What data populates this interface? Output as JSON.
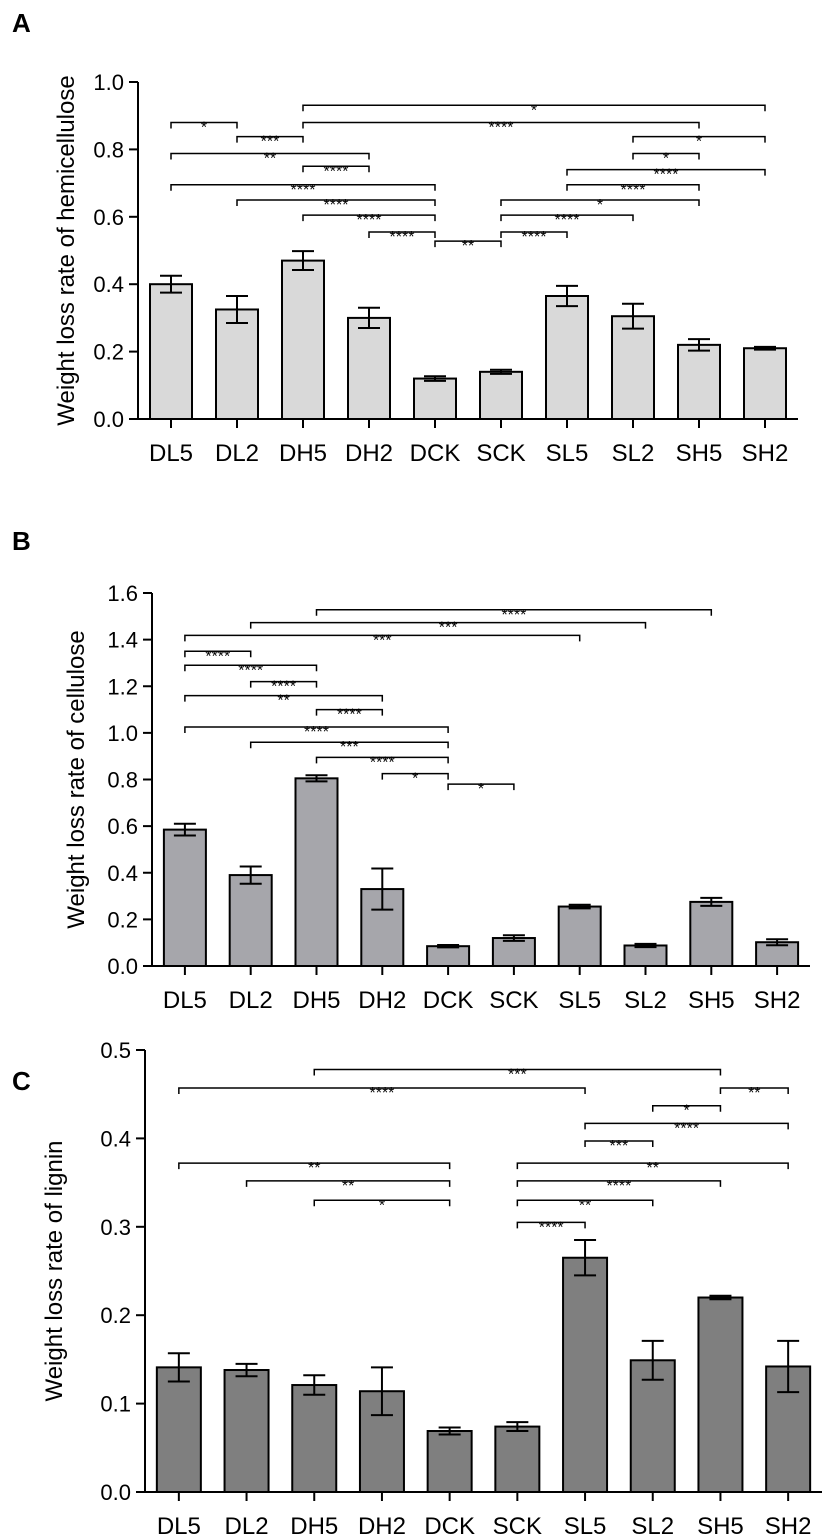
{
  "chart_data": [
    {
      "panel": "A",
      "type": "bar",
      "ylabel": "Weight loss rate of hemicellulose",
      "xlabel": "",
      "ylim": [
        0,
        1.0
      ],
      "yticks": [
        "0.0",
        "0.2",
        "0.4",
        "0.6",
        "0.8",
        "1.0"
      ],
      "categories": [
        "DL5",
        "DL2",
        "DH5",
        "DH2",
        "DCK",
        "SCK",
        "SL5",
        "SL2",
        "SH5",
        "SH2"
      ],
      "values": [
        0.4,
        0.325,
        0.47,
        0.3,
        0.12,
        0.14,
        0.365,
        0.305,
        0.22,
        0.21
      ],
      "errors": [
        0.025,
        0.04,
        0.028,
        0.03,
        0.007,
        0.006,
        0.03,
        0.037,
        0.017,
        0.004
      ],
      "bar_color": "#d9d9d9",
      "significance": [
        {
          "from": 2,
          "to": 9,
          "label": "*",
          "level": 0.931
        },
        {
          "from": 0,
          "to": 1,
          "label": "*",
          "level": 0.88
        },
        {
          "from": 2,
          "to": 8,
          "label": "****",
          "level": 0.88
        },
        {
          "from": 1,
          "to": 2,
          "label": "***",
          "level": 0.838
        },
        {
          "from": 7,
          "to": 9,
          "label": "*",
          "level": 0.838
        },
        {
          "from": 0,
          "to": 3,
          "label": "**",
          "level": 0.788
        },
        {
          "from": 7,
          "to": 8,
          "label": "*",
          "level": 0.788
        },
        {
          "from": 2,
          "to": 3,
          "label": "****",
          "level": 0.75
        },
        {
          "from": 6,
          "to": 9,
          "label": "****",
          "level": 0.74
        },
        {
          "from": 0,
          "to": 4,
          "label": "****",
          "level": 0.695
        },
        {
          "from": 6,
          "to": 8,
          "label": "****",
          "level": 0.695
        },
        {
          "from": 1,
          "to": 4,
          "label": "****",
          "level": 0.65
        },
        {
          "from": 5,
          "to": 8,
          "label": "*",
          "level": 0.65
        },
        {
          "from": 2,
          "to": 4,
          "label": "****",
          "level": 0.605
        },
        {
          "from": 5,
          "to": 7,
          "label": "****",
          "level": 0.605
        },
        {
          "from": 3,
          "to": 4,
          "label": "****",
          "level": 0.555
        },
        {
          "from": 5,
          "to": 6,
          "label": "****",
          "level": 0.555
        },
        {
          "from": 4,
          "to": 5,
          "label": "**",
          "level": 0.528
        }
      ]
    },
    {
      "panel": "B",
      "type": "bar",
      "ylabel": "Weight loss rate of cellulose",
      "xlabel": "",
      "ylim": [
        0,
        1.6
      ],
      "yticks": [
        "0.0",
        "0.2",
        "0.4",
        "0.6",
        "0.8",
        "1.0",
        "1.2",
        "1.4",
        "1.6"
      ],
      "categories": [
        "DL5",
        "DL2",
        "DH5",
        "DH2",
        "DCK",
        "SCK",
        "SL5",
        "SL2",
        "SH5",
        "SH2"
      ],
      "values": [
        0.585,
        0.39,
        0.805,
        0.33,
        0.085,
        0.12,
        0.255,
        0.088,
        0.275,
        0.102
      ],
      "errors": [
        0.025,
        0.037,
        0.013,
        0.088,
        0.005,
        0.012,
        0.008,
        0.007,
        0.017,
        0.013
      ],
      "bar_color": "#a6a6ab",
      "significance": [
        {
          "from": 2,
          "to": 8,
          "label": "****",
          "level": 1.528
        },
        {
          "from": 1,
          "to": 7,
          "label": "***",
          "level": 1.473
        },
        {
          "from": 0,
          "to": 6,
          "label": "***",
          "level": 1.418
        },
        {
          "from": 0,
          "to": 1,
          "label": "****",
          "level": 1.35
        },
        {
          "from": 0,
          "to": 2,
          "label": "****",
          "level": 1.29
        },
        {
          "from": 1,
          "to": 2,
          "label": "****",
          "level": 1.22
        },
        {
          "from": 0,
          "to": 3,
          "label": "**",
          "level": 1.16
        },
        {
          "from": 2,
          "to": 3,
          "label": "****",
          "level": 1.1
        },
        {
          "from": 0,
          "to": 4,
          "label": "****",
          "level": 1.025
        },
        {
          "from": 1,
          "to": 4,
          "label": "***",
          "level": 0.96
        },
        {
          "from": 2,
          "to": 4,
          "label": "****",
          "level": 0.895
        },
        {
          "from": 3,
          "to": 4,
          "label": "*",
          "level": 0.825
        },
        {
          "from": 4,
          "to": 5,
          "label": "*",
          "level": 0.78
        }
      ]
    },
    {
      "panel": "C",
      "type": "bar",
      "ylabel": "Weight loss rate of lignin",
      "xlabel": "",
      "ylim": [
        0,
        0.5
      ],
      "yticks": [
        "0.0",
        "0.1",
        "0.2",
        "0.3",
        "0.4",
        "0.5"
      ],
      "categories": [
        "DL5",
        "DL2",
        "DH5",
        "DH2",
        "DCK",
        "SCK",
        "SL5",
        "SL2",
        "SH5",
        "SH2"
      ],
      "values": [
        0.141,
        0.138,
        0.121,
        0.114,
        0.069,
        0.074,
        0.265,
        0.149,
        0.22,
        0.142
      ],
      "errors": [
        0.016,
        0.007,
        0.011,
        0.027,
        0.004,
        0.005,
        0.02,
        0.022,
        0.002,
        0.029
      ],
      "bar_color": "#7f7f7f",
      "significance": [
        {
          "from": 2,
          "to": 8,
          "label": "***",
          "level": 0.478
        },
        {
          "from": 0,
          "to": 6,
          "label": "****",
          "level": 0.457
        },
        {
          "from": 8,
          "to": 9,
          "label": "**",
          "level": 0.457
        },
        {
          "from": 7,
          "to": 8,
          "label": "*",
          "level": 0.437
        },
        {
          "from": 6,
          "to": 9,
          "label": "****",
          "level": 0.417
        },
        {
          "from": 6,
          "to": 7,
          "label": "***",
          "level": 0.397
        },
        {
          "from": 0,
          "to": 4,
          "label": "**",
          "level": 0.372
        },
        {
          "from": 5,
          "to": 9,
          "label": "**",
          "level": 0.372
        },
        {
          "from": 1,
          "to": 4,
          "label": "**",
          "level": 0.352
        },
        {
          "from": 5,
          "to": 8,
          "label": "****",
          "level": 0.352
        },
        {
          "from": 2,
          "to": 4,
          "label": "*",
          "level": 0.33
        },
        {
          "from": 5,
          "to": 7,
          "label": "**",
          "level": 0.33
        },
        {
          "from": 5,
          "to": 6,
          "label": "****",
          "level": 0.305
        }
      ]
    }
  ],
  "panels": {
    "a_letter": "A",
    "b_letter": "B",
    "c_letter": "C"
  }
}
